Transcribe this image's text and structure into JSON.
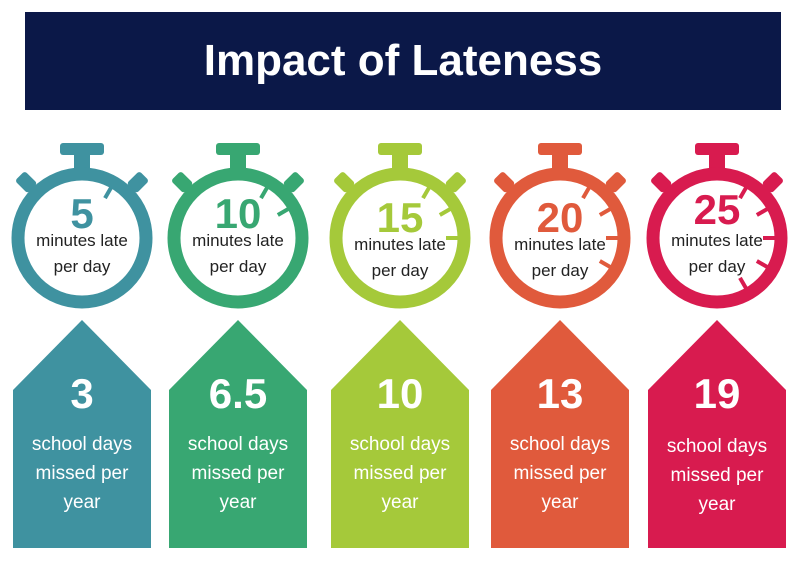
{
  "title": "Impact of Lateness",
  "columns": [
    {
      "color": "#3f92a0",
      "minutes": "5",
      "minutes_label": "minutes late per day",
      "days": "3",
      "days_label": "school days missed per year"
    },
    {
      "color": "#38a772",
      "minutes": "10",
      "minutes_label": "minutes late per day",
      "days": "6.5",
      "days_label": "school days missed per year"
    },
    {
      "color": "#a5c93a",
      "minutes": "15",
      "minutes_label": "minutes late per day",
      "days": "10",
      "days_label": "school days missed per year"
    },
    {
      "color": "#e05a3c",
      "minutes": "20",
      "minutes_label": "minutes late per day",
      "days": "13",
      "days_label": "school days missed per year"
    },
    {
      "color": "#d81b4f",
      "minutes": "25",
      "minutes_label": "minutes late per day",
      "days": "19",
      "days_label": "school days missed per year"
    }
  ]
}
